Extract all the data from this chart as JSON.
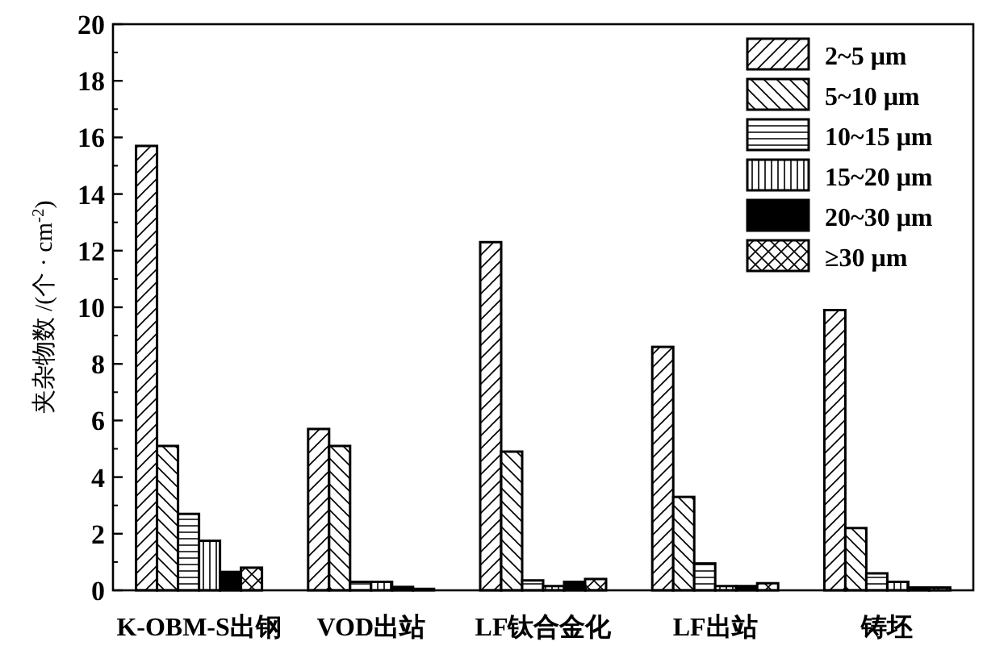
{
  "chart_data": {
    "type": "bar",
    "ylabel": "夹杂物数 /(个 · cm$^{-2}$)",
    "categories": [
      "K-OBM-S出钢",
      "VOD出站",
      "LF钛合金化",
      "LF出站",
      "铸坯"
    ],
    "series": [
      {
        "name": "2~5 μm",
        "color": "#000000",
        "values": [
          15.7,
          5.7,
          12.3,
          8.6,
          9.9
        ]
      },
      {
        "name": "5~10 μm",
        "color": "#000000",
        "values": [
          5.1,
          5.1,
          4.9,
          3.3,
          2.2
        ]
      },
      {
        "name": "10~15 μm",
        "color": "#000000",
        "values": [
          2.7,
          0.3,
          0.35,
          0.95,
          0.6
        ]
      },
      {
        "name": "15~20 μm",
        "color": "#000000",
        "values": [
          1.75,
          0.3,
          0.15,
          0.15,
          0.3
        ]
      },
      {
        "name": "20~30 μm",
        "color": "#000000",
        "values": [
          0.65,
          0.12,
          0.3,
          0.15,
          0.1
        ]
      },
      {
        "name": "≥30 μm",
        "color": "#000000",
        "values": [
          0.8,
          0.05,
          0.4,
          0.25,
          0.1
        ]
      }
    ],
    "ylim": [
      0,
      20
    ],
    "yticks": [
      0,
      2,
      4,
      6,
      8,
      10,
      12,
      14,
      16,
      18,
      20
    ],
    "legend": "top right"
  }
}
